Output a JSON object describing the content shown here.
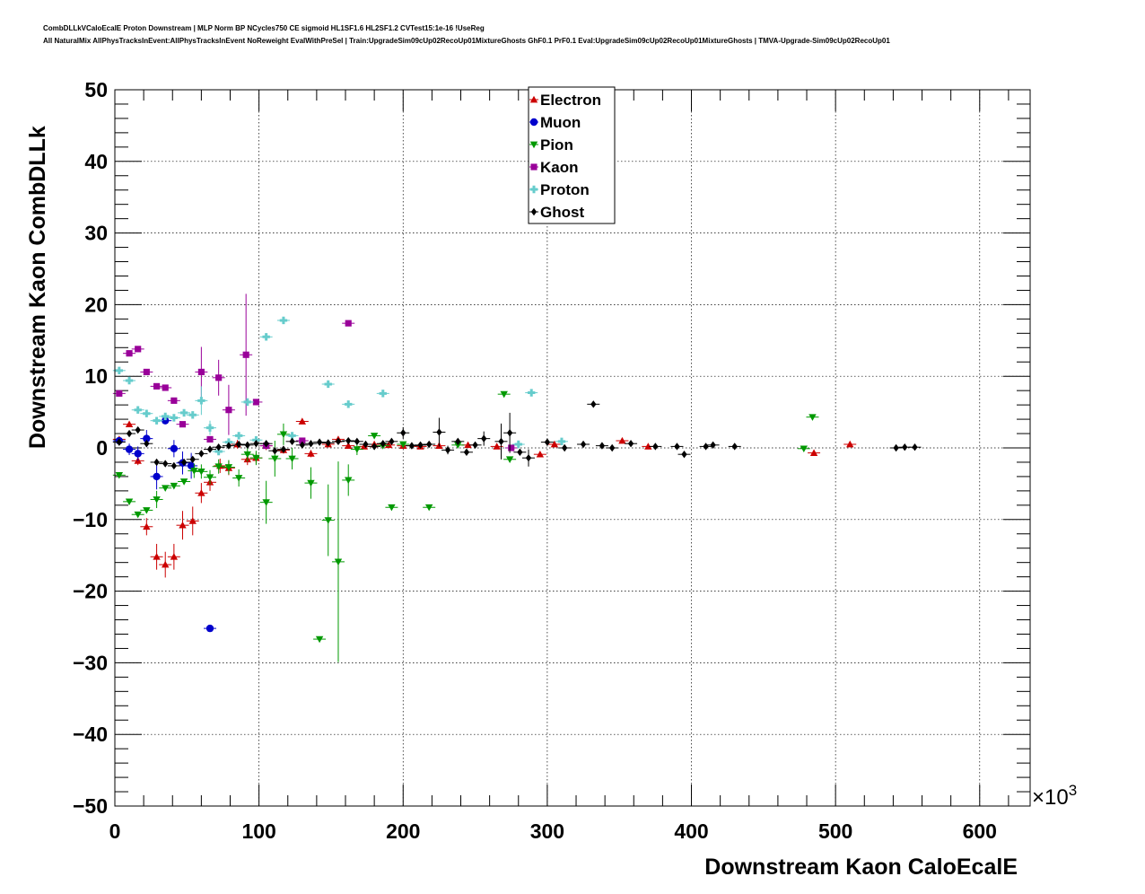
{
  "header": {
    "title_line1": "CombDLLkVCaloEcalE Proton Downstream | MLP Norm BP NCycles750 CE sigmoid HL1SF1.6 HL2SF1.2 CVTest15:1e-16 !UseReg",
    "title_line2": "All NaturalMix AllPhysTracksInEvent:AllPhysTracksInEvent NoReweight EvalWithPreSel | Train:UpgradeSim09cUp02RecoUp01MixtureGhosts GhF0.1 PrF0.1 Eval:UpgradeSim09cUp02RecoUp01MixtureGhosts | TMVA-Upgrade-Sim09cUp02RecoUp01"
  },
  "chart_data": {
    "type": "scatter",
    "xlabel": "Downstream Kaon CaloEcalE",
    "ylabel": "Downstream Kaon CombDLLk",
    "x_multiplier": "×10",
    "x_multiplier_exp": "3",
    "xlim": [
      0,
      635
    ],
    "ylim": [
      -50,
      50
    ],
    "x_ticks": [
      "0",
      "100",
      "200",
      "300",
      "400",
      "500",
      "600"
    ],
    "y_ticks": [
      "−50",
      "−40",
      "−30",
      "−20",
      "−10",
      "0",
      "10",
      "20",
      "30",
      "40",
      "50"
    ],
    "grid": true,
    "legend_position": "top-center",
    "series": [
      {
        "name": "Electron",
        "color": "#cc0000",
        "marker": "triangle-up",
        "points": [
          [
            3,
            1.2,
            0
          ],
          [
            10,
            3.3,
            0
          ],
          [
            16,
            -1.8,
            0.6
          ],
          [
            22,
            -11,
            1.2
          ],
          [
            29,
            -15.2,
            1.8
          ],
          [
            35,
            -16.3,
            1.8
          ],
          [
            41,
            -15.2,
            1.8
          ],
          [
            47,
            -10.8,
            2
          ],
          [
            54,
            -10.2,
            2
          ],
          [
            60,
            -6.3,
            1.4
          ],
          [
            66,
            -4.8,
            1.2
          ],
          [
            73,
            -2.5,
            1
          ],
          [
            79,
            -2.8,
            1
          ],
          [
            85,
            0.5,
            0.6
          ],
          [
            92,
            -1.6,
            0.8
          ],
          [
            98,
            -1.4,
            0.8
          ],
          [
            105,
            0.3,
            0.6
          ],
          [
            117,
            -0.3,
            0.5
          ],
          [
            130,
            3.7,
            0
          ],
          [
            136,
            -0.8,
            0.5
          ],
          [
            148,
            0.5,
            0
          ],
          [
            155,
            1.2,
            0
          ],
          [
            162,
            0.3,
            0
          ],
          [
            173,
            0.2,
            0
          ],
          [
            180,
            0.5,
            0
          ],
          [
            190,
            0.4,
            0
          ],
          [
            200,
            0.3,
            0
          ],
          [
            212,
            0.2,
            0
          ],
          [
            225,
            0.3,
            0
          ],
          [
            245,
            0.4,
            0
          ],
          [
            265,
            0.2,
            0
          ],
          [
            295,
            -0.9,
            0
          ],
          [
            305,
            0.5,
            0
          ],
          [
            352,
            1,
            0
          ],
          [
            370,
            0.2,
            0
          ],
          [
            485,
            -0.7,
            0
          ],
          [
            510,
            0.5,
            0
          ]
        ]
      },
      {
        "name": "Muon",
        "color": "#0000cc",
        "marker": "circle",
        "points": [
          [
            3,
            1,
            0
          ],
          [
            10,
            -0.2,
            0.8
          ],
          [
            16,
            -0.8,
            1
          ],
          [
            22,
            1.3,
            1.2
          ],
          [
            29,
            -4,
            1.8
          ],
          [
            35,
            3.8,
            0
          ],
          [
            41,
            -0.1,
            1.2
          ],
          [
            47,
            -2.1,
            1.6
          ],
          [
            53,
            -2.5,
            1.8
          ],
          [
            66,
            -25.2,
            0
          ]
        ]
      },
      {
        "name": "Pion",
        "color": "#009900",
        "marker": "triangle-down",
        "points": [
          [
            3,
            -3.8,
            0
          ],
          [
            10,
            -7.5,
            0
          ],
          [
            16,
            -9.3,
            0
          ],
          [
            22,
            -8.7,
            0
          ],
          [
            29,
            -7.2,
            1.2
          ],
          [
            35,
            -5.6,
            0
          ],
          [
            41,
            -5.3,
            0
          ],
          [
            48,
            -4.7,
            0
          ],
          [
            55,
            -3.2,
            1
          ],
          [
            60,
            -3.3,
            1
          ],
          [
            66,
            -4.1,
            1
          ],
          [
            72,
            -2.6,
            1
          ],
          [
            79,
            -2.7,
            1
          ],
          [
            86,
            -4.2,
            1.2
          ],
          [
            92,
            -0.9,
            1
          ],
          [
            98,
            -1.4,
            1
          ],
          [
            105,
            -7.6,
            3
          ],
          [
            111,
            -1.5,
            2.5
          ],
          [
            117,
            1.9,
            1.5
          ],
          [
            123,
            -1.5,
            1.5
          ],
          [
            136,
            -4.9,
            2.2
          ],
          [
            142,
            -26.7,
            0
          ],
          [
            148,
            -10.1,
            5
          ],
          [
            155,
            -15.9,
            14
          ],
          [
            162,
            -4.5,
            2.2
          ],
          [
            168,
            -0.2,
            0.8
          ],
          [
            180,
            1.7,
            0
          ],
          [
            186,
            0.3,
            0
          ],
          [
            192,
            -8.3,
            0
          ],
          [
            200,
            0.5,
            0
          ],
          [
            218,
            -8.3,
            0
          ],
          [
            238,
            0.4,
            0
          ],
          [
            270,
            7.5,
            0
          ],
          [
            274,
            -1.6,
            0
          ],
          [
            478,
            -0.1,
            0
          ],
          [
            484,
            4.3,
            0
          ]
        ]
      },
      {
        "name": "Kaon",
        "color": "#990099",
        "marker": "square",
        "points": [
          [
            3,
            7.6,
            0
          ],
          [
            10,
            13.2,
            0
          ],
          [
            16,
            13.8,
            0
          ],
          [
            22,
            10.6,
            0
          ],
          [
            29,
            8.6,
            0
          ],
          [
            35,
            8.4,
            0
          ],
          [
            41,
            6.6,
            0
          ],
          [
            47,
            3.3,
            0
          ],
          [
            60,
            10.6,
            3.5
          ],
          [
            66,
            1.2,
            0
          ],
          [
            72,
            9.8,
            2.5
          ],
          [
            79,
            5.3,
            3.5
          ],
          [
            91,
            13,
            8.5
          ],
          [
            98,
            6.4,
            0
          ],
          [
            105,
            0.3,
            0
          ],
          [
            130,
            1,
            0
          ],
          [
            162,
            17.4,
            0
          ],
          [
            275,
            0,
            0
          ]
        ]
      },
      {
        "name": "Proton",
        "color": "#66cccc",
        "marker": "cross",
        "points": [
          [
            3,
            10.8,
            0
          ],
          [
            10,
            9.4,
            0
          ],
          [
            16,
            5.3,
            0
          ],
          [
            22,
            4.8,
            0
          ],
          [
            29,
            3.8,
            0
          ],
          [
            35,
            4.4,
            0
          ],
          [
            41,
            4.2,
            0
          ],
          [
            48,
            4.9,
            0
          ],
          [
            54,
            4.6,
            0
          ],
          [
            60,
            6.6,
            2
          ],
          [
            66,
            2.8,
            1
          ],
          [
            72,
            -0.5,
            0
          ],
          [
            79,
            0.8,
            0
          ],
          [
            86,
            1.7,
            0
          ],
          [
            92,
            6.4,
            0
          ],
          [
            98,
            1.1,
            0
          ],
          [
            105,
            15.5,
            0
          ],
          [
            117,
            17.8,
            0
          ],
          [
            123,
            1.7,
            0
          ],
          [
            148,
            8.9,
            0
          ],
          [
            162,
            6.1,
            0
          ],
          [
            186,
            7.6,
            0
          ],
          [
            280,
            0.5,
            0
          ],
          [
            289,
            7.7,
            0
          ],
          [
            310,
            0.9,
            0
          ]
        ]
      },
      {
        "name": "Ghost",
        "color": "#000000",
        "marker": "diamond",
        "points": [
          [
            3,
            0.8,
            0
          ],
          [
            10,
            2,
            0
          ],
          [
            16,
            2.5,
            0
          ],
          [
            22,
            0.6,
            0
          ],
          [
            29,
            -2,
            0
          ],
          [
            35,
            -2.2,
            0
          ],
          [
            41,
            -2.5,
            0
          ],
          [
            48,
            -2,
            0
          ],
          [
            54,
            -1.6,
            0
          ],
          [
            60,
            -0.8,
            0
          ],
          [
            66,
            -0.2,
            0
          ],
          [
            72,
            0.1,
            0
          ],
          [
            79,
            0.3,
            0
          ],
          [
            86,
            0.5,
            0
          ],
          [
            92,
            0.4,
            0
          ],
          [
            98,
            0.6,
            0
          ],
          [
            105,
            0.6,
            0
          ],
          [
            111,
            -0.4,
            0
          ],
          [
            117,
            -0.2,
            0
          ],
          [
            123,
            0.9,
            0
          ],
          [
            130,
            0.4,
            0
          ],
          [
            136,
            0.6,
            0
          ],
          [
            142,
            0.8,
            0
          ],
          [
            148,
            0.7,
            0
          ],
          [
            155,
            0.9,
            0
          ],
          [
            162,
            1,
            0
          ],
          [
            168,
            0.9,
            0
          ],
          [
            174,
            0.5,
            0
          ],
          [
            180,
            0.2,
            0
          ],
          [
            186,
            0.6,
            0
          ],
          [
            192,
            0.9,
            0
          ],
          [
            200,
            2.1,
            0.8
          ],
          [
            206,
            0.3,
            0
          ],
          [
            212,
            0.4,
            0
          ],
          [
            218,
            0.5,
            0
          ],
          [
            225,
            2.2,
            2
          ],
          [
            231,
            -0.3,
            0.6
          ],
          [
            238,
            0.9,
            0
          ],
          [
            244,
            -0.6,
            0
          ],
          [
            250,
            0.4,
            0
          ],
          [
            256,
            1.3,
            1
          ],
          [
            268,
            0.9,
            2.5
          ],
          [
            274,
            2.1,
            2.8
          ],
          [
            281,
            -0.6,
            0
          ],
          [
            287,
            -1.4,
            1.2
          ],
          [
            300,
            0.8,
            0
          ],
          [
            312,
            0,
            0
          ],
          [
            325,
            0.5,
            0
          ],
          [
            332,
            6.1,
            0
          ],
          [
            338,
            0.3,
            0
          ],
          [
            345,
            0,
            0
          ],
          [
            358,
            0.6,
            0
          ],
          [
            375,
            0.2,
            0
          ],
          [
            390,
            0.2,
            0
          ],
          [
            395,
            -0.9,
            0
          ],
          [
            410,
            0.2,
            0
          ],
          [
            415,
            0.4,
            0
          ],
          [
            430,
            0.2,
            0
          ],
          [
            542,
            0,
            0
          ],
          [
            548,
            0.1,
            0
          ],
          [
            555,
            0.1,
            0
          ]
        ]
      }
    ]
  }
}
